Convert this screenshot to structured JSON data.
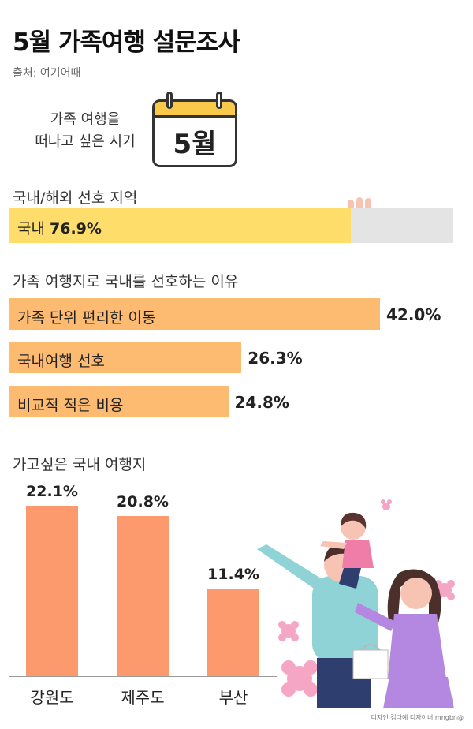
{
  "title": "5월 가족여행 설문조사",
  "source": "출처: 여기어때",
  "when": {
    "label_line1": "가족 여행을",
    "label_line2": "떠나고 싶은 시기",
    "month": "5월"
  },
  "domestic": {
    "section_title": "국내/해외 선호 지역",
    "label": "국내",
    "value_text": "76.9%",
    "value": 76.9
  },
  "reasons": {
    "section_title": "가족 여행지로 국내를 선호하는 이유",
    "items": [
      {
        "label": "가족 단위 편리한 이동",
        "value_text": "42.0%",
        "value": 42.0
      },
      {
        "label": "국내여행 선호",
        "value_text": "26.3%",
        "value": 26.3
      },
      {
        "label": "비교적 적은 비용",
        "value_text": "24.8%",
        "value": 24.8
      }
    ]
  },
  "destinations": {
    "section_title": "가고싶은 국내 여행지",
    "items": [
      {
        "label": "강원도",
        "value_text": "22.1%",
        "value": 22.1
      },
      {
        "label": "제주도",
        "value_text": "20.8%",
        "value": 20.8
      },
      {
        "label": "부산",
        "value_text": "11.4%",
        "value": 11.4
      }
    ]
  },
  "credit": "디자인 김다예 디자이너 mngbn@",
  "colors": {
    "domestic_fill": "#fedd6b",
    "track": "#e4e4e4",
    "reason_bar": "#fdbb72",
    "destination_bar": "#fc9a6e",
    "calendar_top": "#f9c94a"
  },
  "chart_data": [
    {
      "type": "bar",
      "orientation": "horizontal",
      "title": "국내/해외 선호 지역",
      "categories": [
        "국내"
      ],
      "values": [
        76.9
      ],
      "unit": "%",
      "ylim": [
        0,
        100
      ]
    },
    {
      "type": "bar",
      "orientation": "horizontal",
      "title": "가족 여행지로 국내를 선호하는 이유",
      "categories": [
        "가족 단위 편리한 이동",
        "국내여행 선호",
        "비교적 적은 비용"
      ],
      "values": [
        42.0,
        26.3,
        24.8
      ],
      "unit": "%"
    },
    {
      "type": "bar",
      "orientation": "vertical",
      "title": "가고싶은 국내 여행지",
      "categories": [
        "강원도",
        "제주도",
        "부산"
      ],
      "values": [
        22.1,
        20.8,
        11.4
      ],
      "unit": "%"
    }
  ]
}
